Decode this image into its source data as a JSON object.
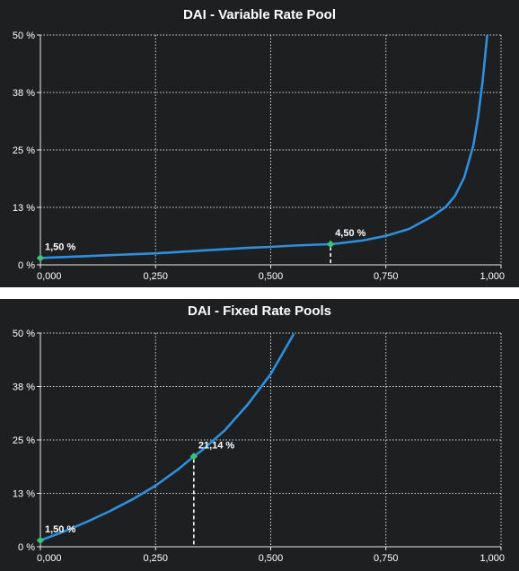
{
  "chart_data": [
    {
      "type": "line",
      "title": "DAI - Variable Rate Pool",
      "xlabel": "",
      "ylabel": "",
      "xlim": [
        0,
        1
      ],
      "ylim": [
        0,
        50
      ],
      "x_tick_labels": [
        "0,000",
        "0,250",
        "0,500",
        "0,750",
        "1,000"
      ],
      "y_tick_labels": [
        "0 %",
        "13 %",
        "25 %",
        "38 %",
        "50 %"
      ],
      "grid": true,
      "line_color": "#2f8fdf",
      "marker_color": "#3fc07a",
      "series": [
        {
          "x": [
            0,
            0.05,
            0.1,
            0.15,
            0.2,
            0.25,
            0.3,
            0.35,
            0.4,
            0.45,
            0.5,
            0.55,
            0.6,
            0.63,
            0.65,
            0.7,
            0.75,
            0.8,
            0.85,
            0.88,
            0.9,
            0.92,
            0.94,
            0.95,
            0.96,
            0.97
          ],
          "values": [
            1.5,
            1.7,
            1.9,
            2.1,
            2.3,
            2.5,
            2.8,
            3.1,
            3.4,
            3.7,
            3.9,
            4.2,
            4.4,
            4.5,
            4.7,
            5.3,
            6.3,
            7.8,
            10.5,
            12.6,
            15.0,
            19.0,
            26.0,
            32.0,
            40.0,
            50.0
          ]
        }
      ],
      "points": [
        {
          "x": 0,
          "y": 1.5,
          "label": "1,50 %"
        },
        {
          "x": 0.63,
          "y": 4.5,
          "label": "4,50 %"
        }
      ]
    },
    {
      "type": "line",
      "title": "DAI - Fixed Rate Pools",
      "xlabel": "",
      "ylabel": "",
      "xlim": [
        0,
        1
      ],
      "ylim": [
        0,
        50
      ],
      "x_tick_labels": [
        "0,000",
        "0,250",
        "0,500",
        "0,750",
        "1,000"
      ],
      "y_tick_labels": [
        "0 %",
        "13 %",
        "25 %",
        "38 %",
        "50 %"
      ],
      "grid": true,
      "line_color": "#2f8fdf",
      "marker_color": "#3fc07a",
      "series": [
        {
          "x": [
            0,
            0.05,
            0.1,
            0.15,
            0.2,
            0.25,
            0.3,
            0.333,
            0.35,
            0.4,
            0.45,
            0.5,
            0.55
          ],
          "values": [
            1.5,
            3.5,
            5.8,
            8.3,
            11.1,
            14.3,
            18.2,
            21.14,
            22.5,
            27.2,
            33.3,
            40.4,
            49.8
          ]
        }
      ],
      "points": [
        {
          "x": 0,
          "y": 1.5,
          "label": "1,50 %"
        },
        {
          "x": 0.333,
          "y": 21.14,
          "label": "21,14 %"
        }
      ]
    }
  ]
}
